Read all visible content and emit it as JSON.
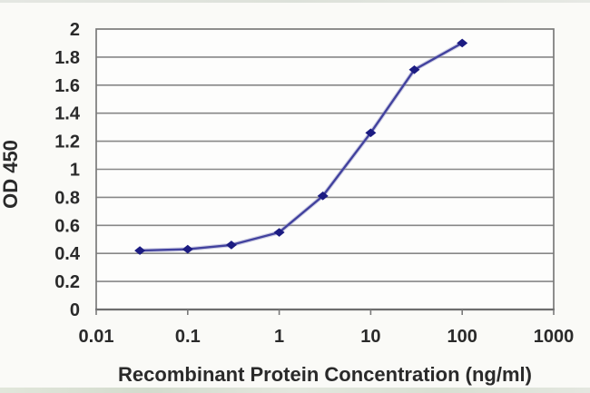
{
  "figure": {
    "kind": "elisa-standard-curve",
    "background": "#fafaf7",
    "plot_background": "#fdfdfc"
  },
  "chart_data": {
    "type": "line",
    "title": "",
    "xlabel": "Recombinant Protein Concentration (ng/ml)",
    "ylabel": "OD 450",
    "xscale": "log",
    "yscale": "linear",
    "xlim": [
      0.01,
      1000
    ],
    "ylim": [
      0,
      2
    ],
    "grid": "horizontal",
    "legend": "none",
    "x": [
      0.03,
      0.1,
      0.3,
      1,
      3,
      10,
      30,
      100
    ],
    "y": [
      0.42,
      0.43,
      0.46,
      0.55,
      0.81,
      1.26,
      1.71,
      1.9
    ],
    "series": [
      {
        "name": "OD 450 signal",
        "marker": "diamond"
      }
    ],
    "xticks": {
      "values": [
        0.01,
        0.1,
        1,
        10,
        100,
        1000
      ],
      "labels": [
        "0.01",
        "0.1",
        "1",
        "10",
        "100",
        "1000"
      ]
    },
    "yticks": {
      "values": [
        0,
        0.2,
        0.4,
        0.6,
        0.8,
        1,
        1.2,
        1.4,
        1.6,
        1.8,
        2
      ],
      "labels": [
        "0",
        "0.2",
        "0.4",
        "0.6",
        "0.8",
        "1",
        "1.2",
        "1.4",
        "1.6",
        "1.8",
        "2"
      ]
    },
    "colors": {
      "line": "#42429e",
      "line_halo": "#8c8cc4",
      "marker": "#1c1c82",
      "grid": "#878787",
      "border": "#7a7a7a",
      "axis": "#6e6e6e",
      "text": "#2a2a2a"
    }
  }
}
